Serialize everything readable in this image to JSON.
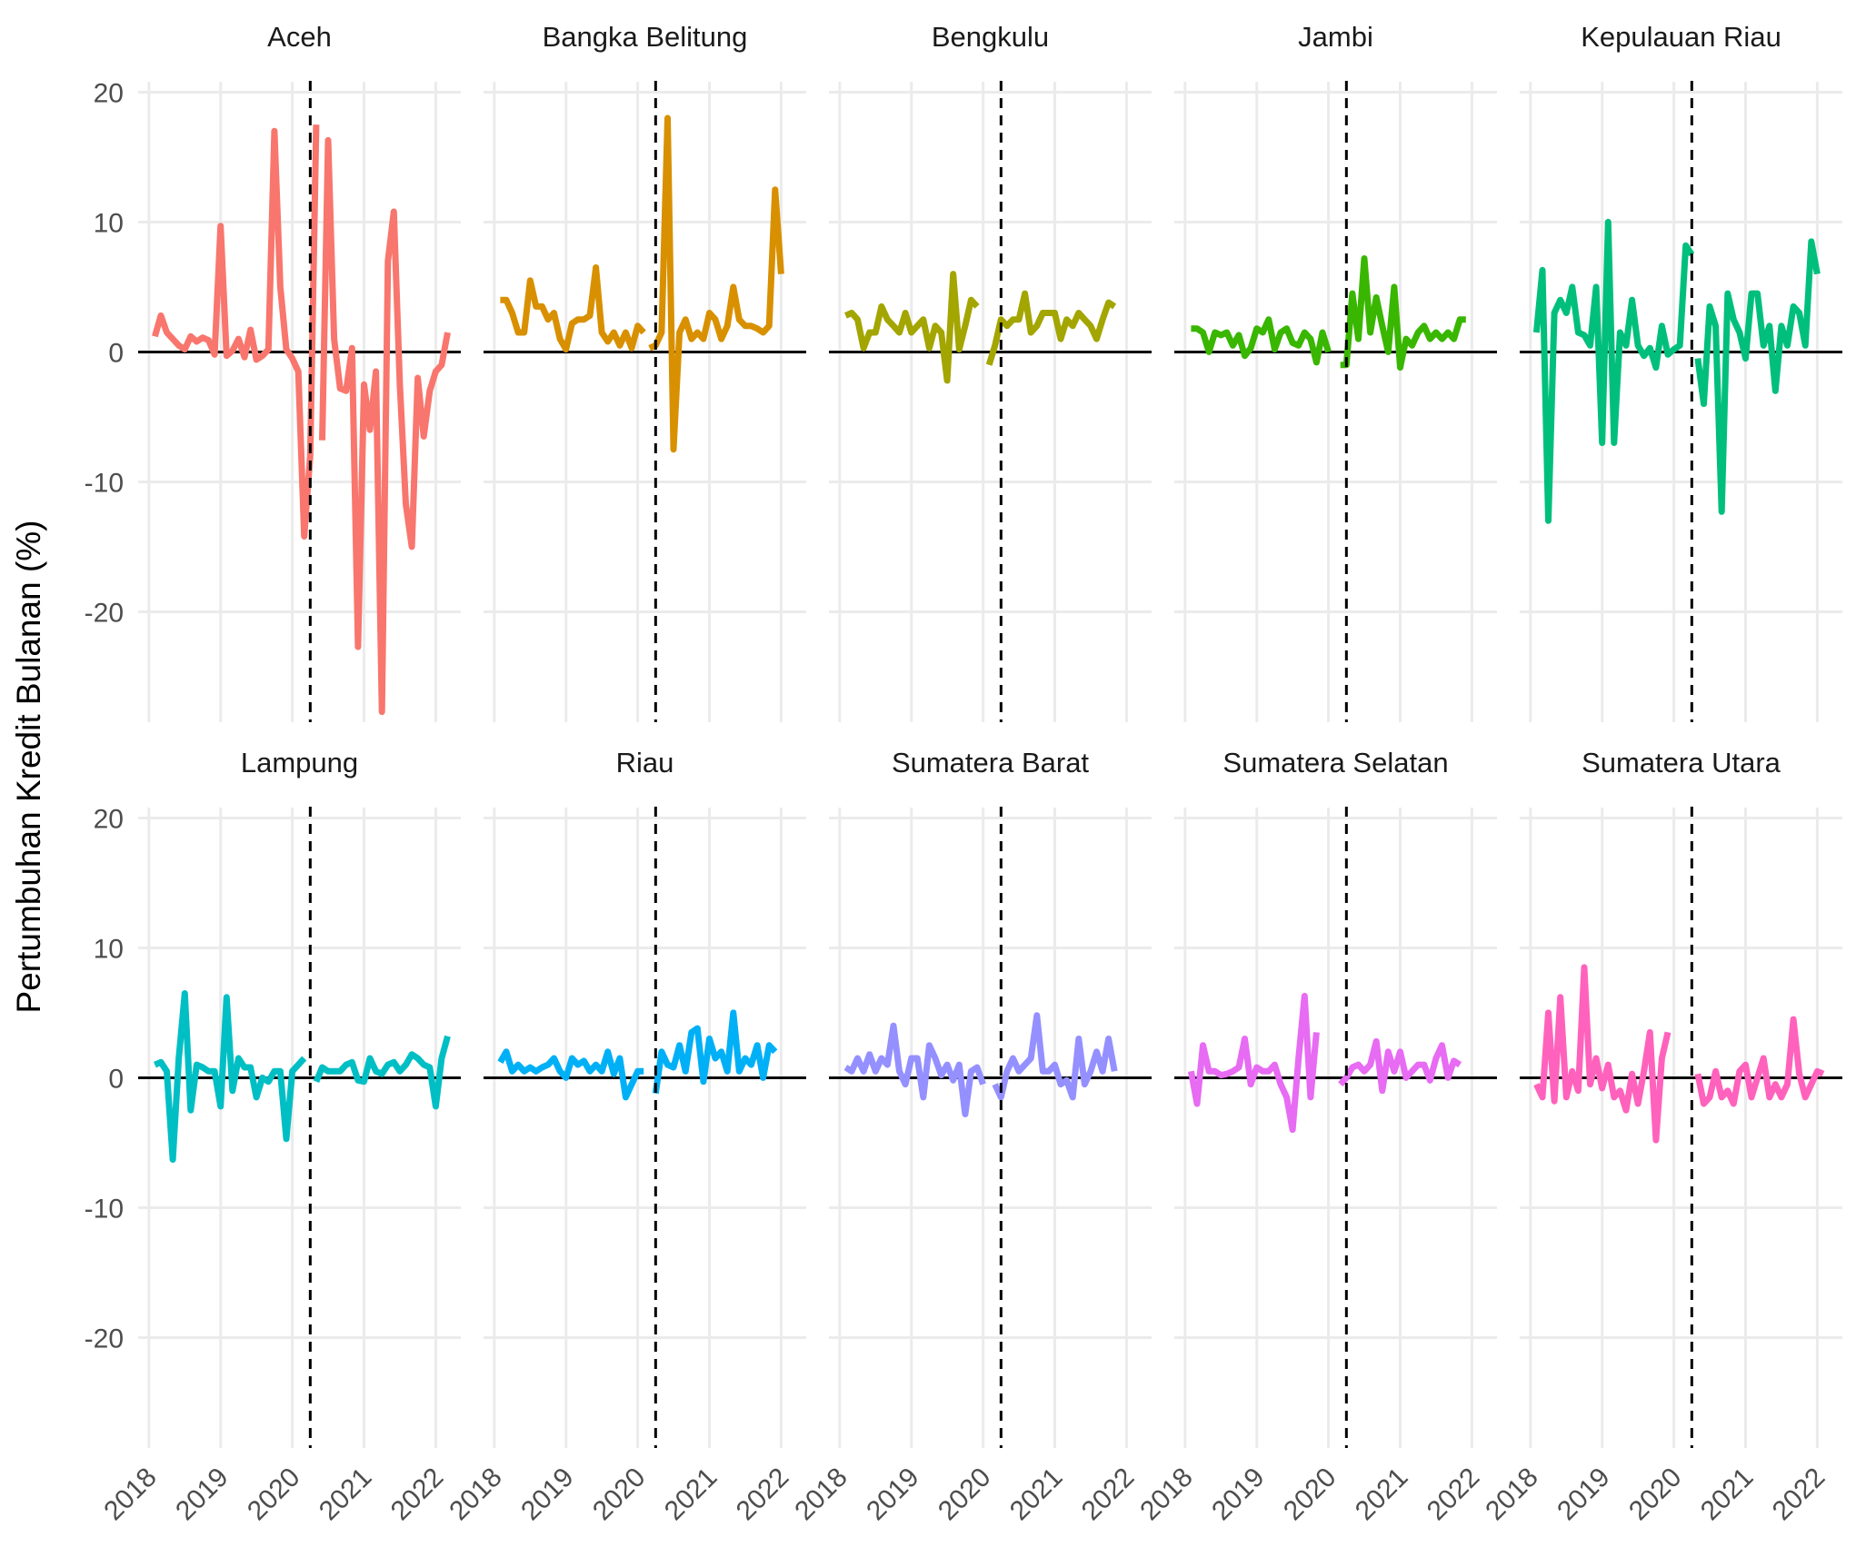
{
  "chart_data": {
    "type": "line",
    "ylabel": "Pertumbuhan Kredit Bulanan (%)",
    "xlabel": "",
    "xlim": [
      2017.85,
      2022.35
    ],
    "ylim": [
      -28.5,
      20.8
    ],
    "x_ticks": [
      "2018",
      "2019",
      "2020",
      "2021",
      "2022"
    ],
    "y_ticks": [
      "20",
      "10",
      "0",
      "-10",
      "-20"
    ],
    "y_tick_values": [
      20,
      10,
      0,
      -10,
      -20
    ],
    "reference_vline_x": 2020.25,
    "reference_hline_y": 0,
    "grid": true,
    "legend": "none",
    "x_start": 2018.083,
    "x_step": 0.0833333,
    "panels": [
      {
        "name": "Aceh",
        "color": "#F8766D",
        "segments": [
          {
            "start_index": 0,
            "values": [
              1.2,
              2.8,
              1.5,
              1.0,
              0.5,
              0.2,
              1.2,
              0.8,
              1.1,
              0.9,
              -0.2,
              9.7,
              -0.3,
              0.1,
              1.0,
              -0.4,
              1.7,
              -0.6,
              -0.3,
              0.2,
              17.0,
              5.0,
              0.2,
              -0.5,
              -1.5,
              -14.2,
              -8.0,
              17.5
            ]
          },
          {
            "start_index": 28,
            "values": [
              -6.8,
              16.3,
              1.0,
              -2.8,
              -3.0,
              0.3,
              -22.7,
              -2.5,
              -6.0,
              -1.5,
              -27.7,
              7.0,
              10.8,
              -2.5,
              -11.7,
              -15.0,
              -2.0,
              -6.5,
              -3.0,
              -1.5,
              -1.0,
              1.5
            ]
          }
        ]
      },
      {
        "name": "Bangka Belitung",
        "color": "#D89000",
        "segments": [
          {
            "start_index": 0,
            "values": [
              4.0,
              4.0,
              3.0,
              1.5,
              1.5,
              5.5,
              3.5,
              3.5,
              2.5,
              3.0,
              1.0,
              0.2,
              2.2,
              2.5,
              2.5,
              2.8,
              6.5,
              1.5,
              0.8,
              1.5,
              0.5,
              1.5,
              0.3,
              2.0,
              1.5
            ]
          },
          {
            "start_index": 25,
            "values": [
              0.3,
              0.5,
              1.5,
              18.0,
              -7.5,
              1.5,
              2.5,
              1.0,
              1.5,
              1.0,
              3.0,
              2.5,
              1.0,
              2.0,
              5.0,
              2.5,
              2.0,
              2.0,
              1.8,
              1.5,
              2.0,
              12.5,
              6.0
            ]
          }
        ]
      },
      {
        "name": "Bengkulu",
        "color": "#A3A500",
        "segments": [
          {
            "start_index": 0,
            "values": [
              2.8,
              3.0,
              2.5,
              0.3,
              1.5,
              1.5,
              3.5,
              2.5,
              2.0,
              1.5,
              3.0,
              1.5,
              2.0,
              2.5,
              0.3,
              2.0,
              1.5,
              -2.2,
              6.0,
              0.2,
              2.0,
              4.0,
              3.5
            ]
          },
          {
            "start_index": 24,
            "values": [
              -1.0,
              0.5,
              2.5,
              2.0,
              2.5,
              2.5,
              4.5,
              1.5,
              2.0,
              3.0,
              3.0,
              3.0,
              1.0,
              2.5,
              2.0,
              3.0,
              2.5,
              2.0,
              1.0,
              2.5,
              3.8,
              3.5
            ]
          }
        ]
      },
      {
        "name": "Jambi",
        "color": "#39B600",
        "segments": [
          {
            "start_index": 0,
            "values": [
              1.8,
              1.8,
              1.5,
              0.0,
              1.5,
              1.3,
              1.5,
              0.5,
              1.3,
              -0.3,
              0.3,
              1.8,
              1.5,
              2.5,
              0.2,
              1.5,
              1.8,
              0.7,
              0.5,
              1.5,
              1.0,
              -0.8,
              1.5,
              0.0
            ]
          },
          {
            "start_index": 25,
            "values": [
              -1.0,
              -1.0,
              4.5,
              1.0,
              7.2,
              1.5,
              4.2,
              2.0,
              0.0,
              5.0,
              -1.2,
              1.0,
              0.5,
              1.5,
              2.0,
              1.0,
              1.5,
              1.0,
              1.5,
              1.0,
              2.5,
              2.5
            ]
          }
        ]
      },
      {
        "name": "Kepulauan Riau",
        "color": "#00BF7D",
        "segments": [
          {
            "start_index": 0,
            "values": [
              1.5,
              6.3,
              -13.0,
              3.0,
              4.0,
              3.0,
              5.0,
              1.5,
              1.3,
              0.5,
              5.0,
              -7.0,
              10.0,
              -7.0,
              1.5,
              0.5,
              4.0,
              0.5,
              -0.3,
              0.3,
              -1.2,
              2.0,
              -0.2,
              0.2,
              0.5,
              8.2,
              7.5
            ]
          },
          {
            "start_index": 27,
            "values": [
              -0.5,
              -4.0,
              3.5,
              2.0,
              -12.3,
              4.5,
              2.5,
              1.5,
              -0.5,
              4.5,
              4.5,
              0.5,
              2.0,
              -3.0,
              2.0,
              0.5,
              3.5,
              3.0,
              0.5,
              8.5,
              6.0
            ]
          }
        ]
      },
      {
        "name": "Lampung",
        "color": "#00BFC4",
        "segments": [
          {
            "start_index": 0,
            "values": [
              1.0,
              1.2,
              0.5,
              -6.3,
              1.5,
              6.5,
              -2.5,
              1.0,
              0.8,
              0.5,
              0.5,
              -2.2,
              6.2,
              -1.0,
              1.5,
              0.8,
              0.8,
              -1.5,
              0.0,
              -0.3,
              0.5,
              0.5,
              -4.7,
              0.5,
              1.0,
              1.5
            ]
          },
          {
            "start_index": 27,
            "values": [
              -0.3,
              0.8,
              0.5,
              0.5,
              0.5,
              1.0,
              1.2,
              -0.2,
              -0.3,
              1.5,
              0.5,
              0.3,
              1.0,
              1.2,
              0.5,
              1.0,
              1.8,
              1.5,
              1.0,
              0.8,
              -2.2,
              1.5,
              3.2
            ]
          }
        ]
      },
      {
        "name": "Riau",
        "color": "#00B0F6",
        "segments": [
          {
            "start_index": 0,
            "values": [
              1.2,
              2.0,
              0.5,
              1.0,
              0.5,
              0.8,
              0.5,
              0.8,
              1.0,
              1.5,
              0.5,
              0.0,
              1.5,
              1.0,
              1.3,
              0.5,
              1.0,
              0.5,
              2.0,
              0.3,
              1.5,
              -1.5,
              -0.5,
              0.5,
              0.5
            ]
          },
          {
            "start_index": 26,
            "values": [
              -1.2,
              2.0,
              1.0,
              0.8,
              2.5,
              0.5,
              3.5,
              3.8,
              -0.3,
              3.0,
              1.5,
              2.0,
              0.5,
              5.0,
              0.5,
              1.5,
              1.0,
              2.5,
              0.0,
              2.5,
              2.0
            ]
          }
        ]
      },
      {
        "name": "Sumatera Barat",
        "color": "#9590FF",
        "segments": [
          {
            "start_index": 0,
            "values": [
              0.8,
              0.5,
              1.5,
              0.5,
              1.8,
              0.5,
              1.5,
              1.0,
              4.0,
              0.5,
              -0.5,
              1.5,
              1.5,
              -1.5,
              2.5,
              1.5,
              0.2,
              1.0,
              -0.2,
              1.0,
              -2.8,
              0.5,
              0.8,
              -0.5
            ]
          },
          {
            "start_index": 25,
            "values": [
              -0.5,
              -1.5,
              0.5,
              1.5,
              0.5,
              1.0,
              1.5,
              4.8,
              0.5,
              0.5,
              1.0,
              -0.5,
              -0.2,
              -1.5,
              3.0,
              -0.5,
              0.5,
              2.0,
              0.5,
              3.0,
              0.5
            ]
          }
        ]
      },
      {
        "name": "Sumatera Selatan",
        "color": "#E76BF3",
        "segments": [
          {
            "start_index": 0,
            "values": [
              0.5,
              -2.0,
              2.5,
              0.5,
              0.5,
              0.2,
              0.3,
              0.5,
              0.8,
              3.0,
              -0.5,
              0.8,
              0.5,
              0.5,
              1.0,
              -0.5,
              -1.5,
              -4.0,
              1.5,
              6.3,
              -1.5,
              3.5
            ]
          },
          {
            "start_index": 25,
            "values": [
              -0.5,
              0.0,
              0.8,
              1.0,
              0.5,
              1.0,
              2.8,
              -1.0,
              2.0,
              0.5,
              2.0,
              0.0,
              0.5,
              1.0,
              1.0,
              -0.2,
              1.5,
              2.5,
              0.0,
              1.3,
              1.0
            ]
          }
        ]
      },
      {
        "name": "Sumatera Utara",
        "color": "#FF62BC",
        "segments": [
          {
            "start_index": 0,
            "values": [
              -0.5,
              -1.5,
              5.0,
              -1.8,
              6.2,
              -1.5,
              0.5,
              -1.0,
              8.5,
              -0.5,
              1.5,
              -0.8,
              1.0,
              -1.5,
              -1.0,
              -2.5,
              0.3,
              -2.0,
              0.5,
              3.5,
              -4.8,
              1.5,
              3.5
            ]
          },
          {
            "start_index": 27,
            "values": [
              0.3,
              -2.0,
              -1.5,
              0.5,
              -1.5,
              -1.0,
              -2.0,
              0.5,
              1.0,
              -1.5,
              0.0,
              1.5,
              -1.5,
              -0.5,
              -1.5,
              -0.5,
              4.5,
              0.3,
              -1.5,
              -0.5,
              0.5,
              0.3
            ]
          }
        ]
      }
    ]
  }
}
